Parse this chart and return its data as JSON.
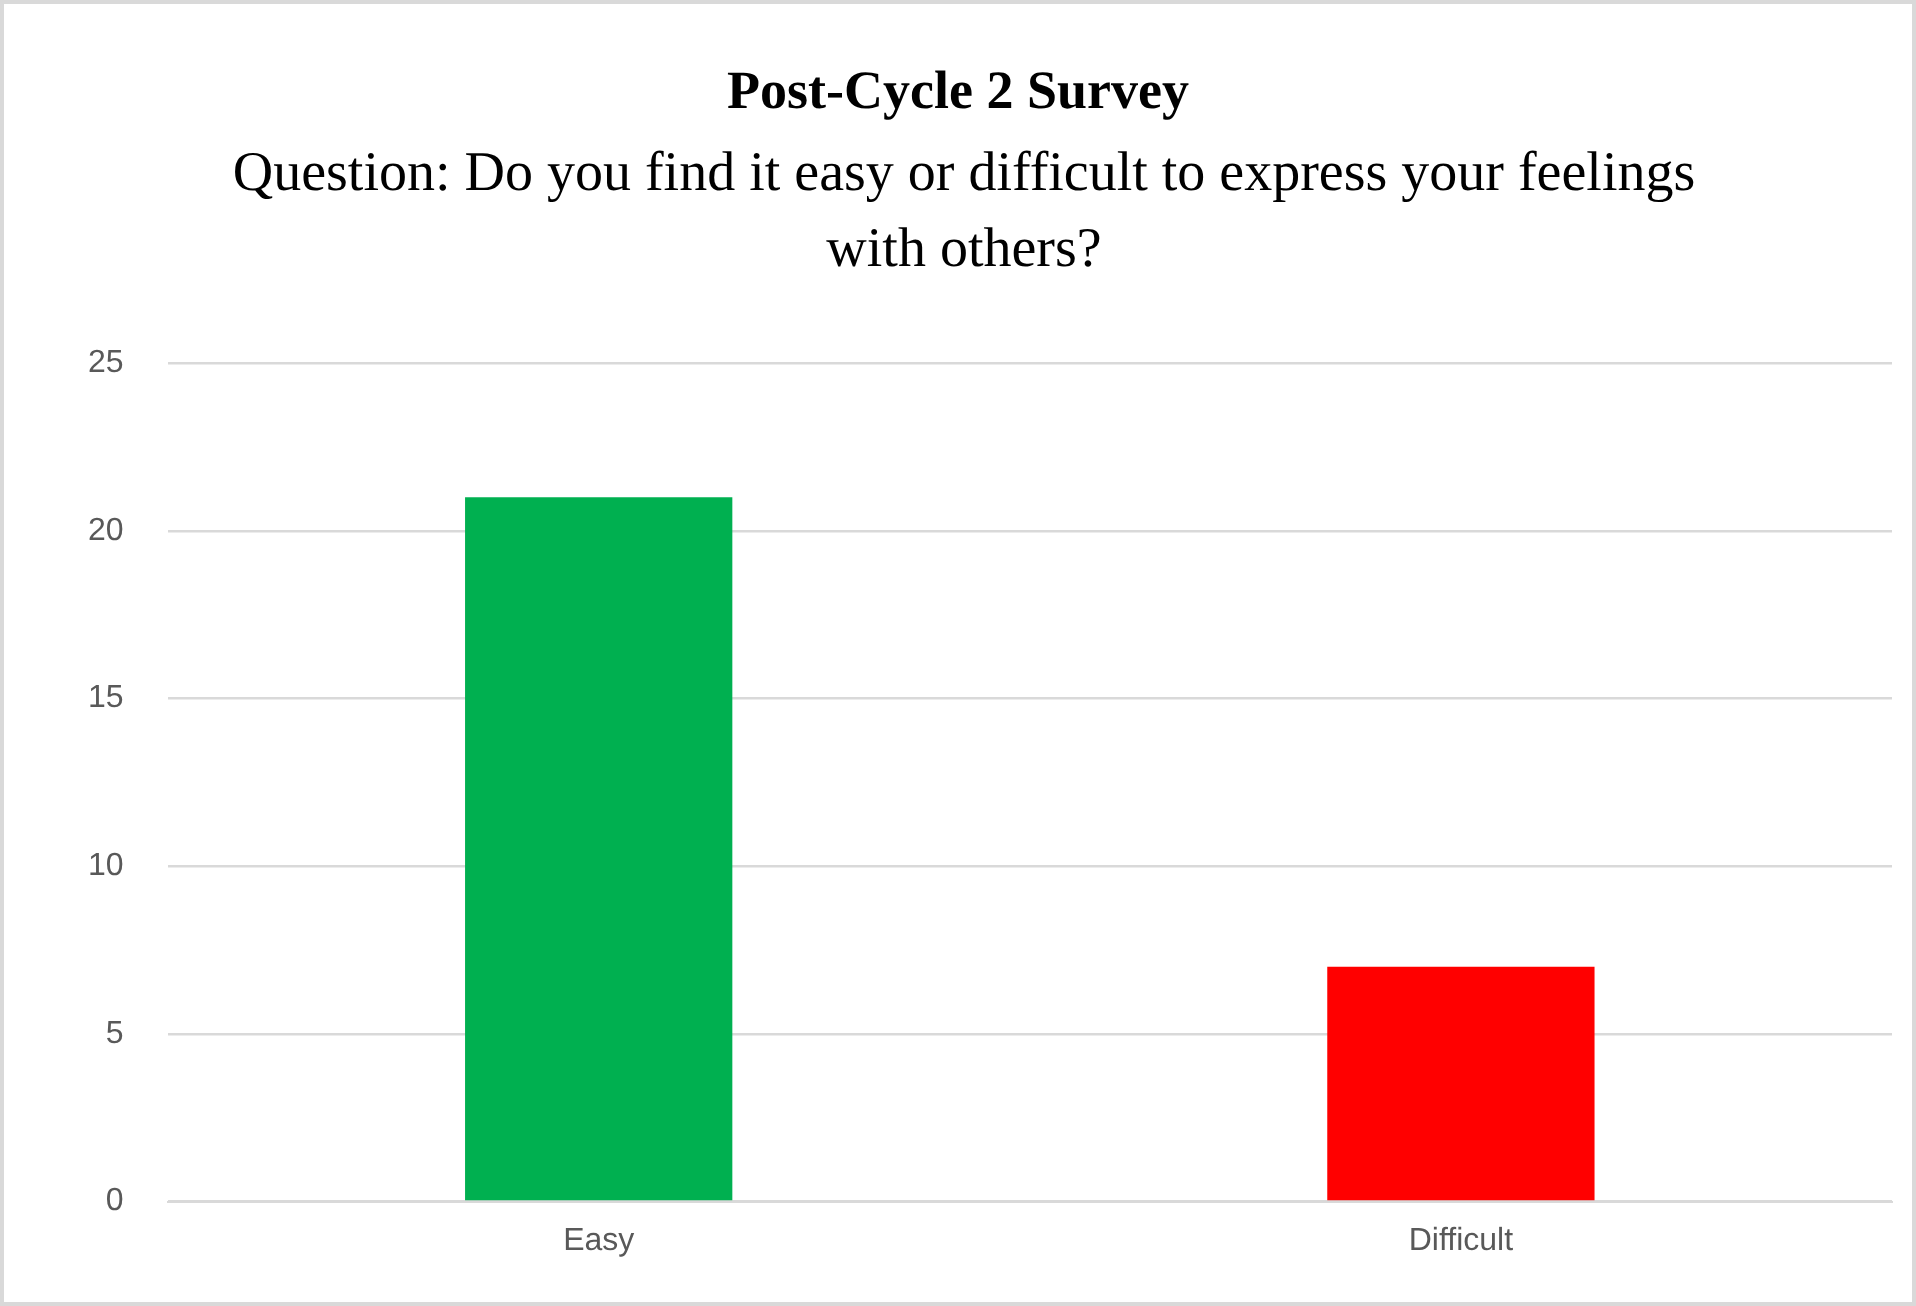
{
  "chart_data": {
    "type": "bar",
    "title": "Post-Cycle 2 Survey",
    "subtitle": "Question: Do you find it easy or difficult to express your feelings with others?",
    "categories": [
      "Easy",
      "Difficult"
    ],
    "values": [
      21,
      7
    ],
    "colors": [
      "#00b050",
      "#ff0000"
    ],
    "ylim": [
      0,
      25
    ],
    "yticks": [
      0,
      5,
      10,
      15,
      20,
      25
    ],
    "grid": "y",
    "legend": false
  }
}
